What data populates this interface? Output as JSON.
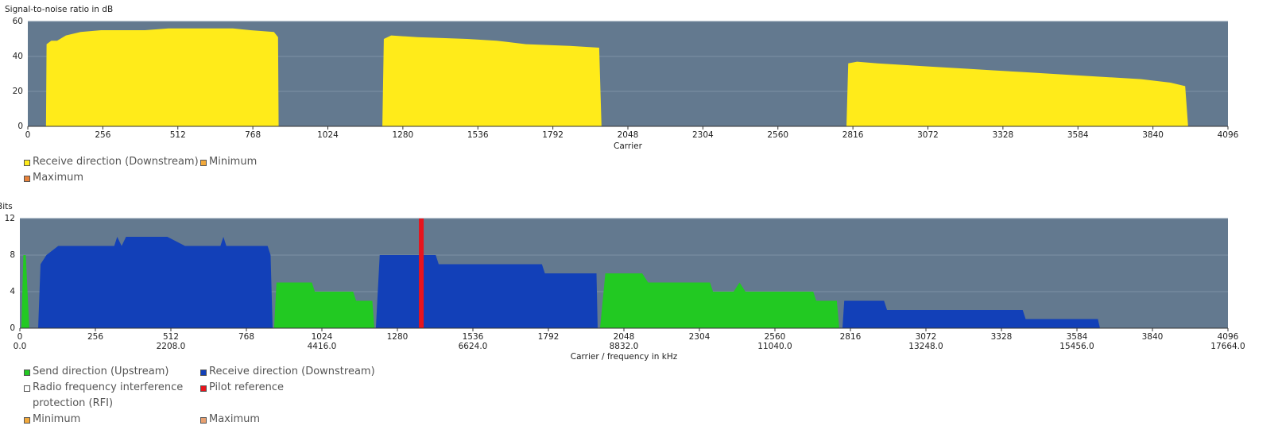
{
  "chart_data": [
    {
      "type": "area",
      "y_label": "Signal-to-noise ratio in dB",
      "x_label": "Carrier",
      "xlim": [
        0,
        4096
      ],
      "xticks": [
        0,
        256,
        512,
        768,
        1024,
        1280,
        1536,
        1792,
        2048,
        2304,
        2560,
        2816,
        3072,
        3328,
        3584,
        3840,
        4096
      ],
      "ylim": [
        0,
        60
      ],
      "yticks": [
        0,
        20,
        40,
        60
      ],
      "grid": true,
      "series": [
        {
          "name": "Receive direction (Downstream)",
          "color": "#ffeb1a",
          "x": [
            62,
            64,
            80,
            100,
            130,
            180,
            250,
            400,
            480,
            700,
            760,
            840,
            854,
            856,
            null,
            1210,
            1215,
            1240,
            1330,
            1500,
            1600,
            1700,
            1850,
            1950,
            1958,
            null,
            2794,
            2800,
            2830,
            2900,
            3000,
            3100,
            3200,
            3300,
            3400,
            3500,
            3600,
            3700,
            3800,
            3900,
            3950,
            3960
          ],
          "values": [
            0,
            47,
            49,
            49,
            52,
            54,
            55,
            55,
            56,
            56,
            55,
            54,
            51,
            0,
            null,
            0,
            50,
            52,
            51,
            50,
            49,
            47,
            46,
            45,
            0,
            null,
            0,
            36,
            37,
            36,
            35,
            34,
            33,
            32,
            31,
            30,
            29,
            28,
            27,
            25,
            23,
            0
          ]
        },
        {
          "name": "Minimum",
          "color": "#f2a93b"
        },
        {
          "name": "Maximum",
          "color": "#e8823a"
        }
      ]
    },
    {
      "type": "area",
      "y_label": "Bits",
      "x_label": "Carrier / frequency in kHz",
      "xlim": [
        0,
        4096
      ],
      "xticks": [
        0,
        256,
        512,
        768,
        1024,
        1280,
        1536,
        1792,
        2048,
        2304,
        2560,
        2816,
        3072,
        3328,
        3584,
        3840,
        4096
      ],
      "x2lim": [
        0,
        17664
      ],
      "x2ticks": [
        {
          "value": 0,
          "label": "0.0"
        },
        {
          "value": 2208,
          "label": "2208.0"
        },
        {
          "value": 4416,
          "label": "4416.0"
        },
        {
          "value": 6624,
          "label": "6624.0"
        },
        {
          "value": 8832,
          "label": "8832.0"
        },
        {
          "value": 11040,
          "label": "11040.0"
        },
        {
          "value": 13248,
          "label": "13248.0"
        },
        {
          "value": 15456,
          "label": "15456.0"
        },
        {
          "value": 17664,
          "label": "17664.0"
        }
      ],
      "ylim": [
        0,
        12
      ],
      "yticks": [
        0,
        4,
        8,
        12
      ],
      "grid": true,
      "series": [
        {
          "name": "Send direction (Upstream)",
          "color": "#22c922",
          "x": [
            5,
            12,
            20,
            32,
            null,
            862,
            870,
            990,
            1000,
            1130,
            1140,
            1195,
            1202,
            null,
            1967,
            1985,
            2110,
            2130,
            2340,
            2350,
            2420,
            2440,
            2460,
            2690,
            2700,
            2770,
            2778
          ],
          "values": [
            0,
            8,
            8,
            0,
            null,
            0,
            5,
            5,
            4,
            4,
            3,
            3,
            0,
            null,
            0,
            6,
            6,
            5,
            5,
            4,
            4,
            5,
            4,
            4,
            3,
            3,
            0
          ]
        },
        {
          "name": "Receive direction (Downstream)",
          "color": "#1240b8",
          "x": [
            62,
            70,
            90,
            130,
            320,
            330,
            345,
            360,
            500,
            560,
            680,
            690,
            700,
            840,
            850,
            857,
            null,
            1207,
            1220,
            1410,
            1420,
            1770,
            1780,
            1955,
            1959,
            null,
            2789,
            2795,
            2930,
            2940,
            3400,
            3410,
            3655,
            3662
          ],
          "values": [
            0,
            7,
            8,
            9,
            9,
            10,
            9,
            10,
            10,
            9,
            9,
            10,
            9,
            9,
            8,
            0,
            null,
            0,
            8,
            8,
            7,
            7,
            6,
            6,
            0,
            null,
            0,
            3,
            3,
            2,
            2,
            1,
            1,
            0
          ]
        },
        {
          "name": "Radio frequency interference protection (RFI)",
          "color": "#ffffff"
        },
        {
          "name": "Pilot reference",
          "color": "#e8141c",
          "x": [
            1361
          ]
        },
        {
          "name": "Minimum",
          "color": "#f2a93b"
        },
        {
          "name": "Maximum",
          "color": "#e8a070"
        }
      ]
    }
  ]
}
